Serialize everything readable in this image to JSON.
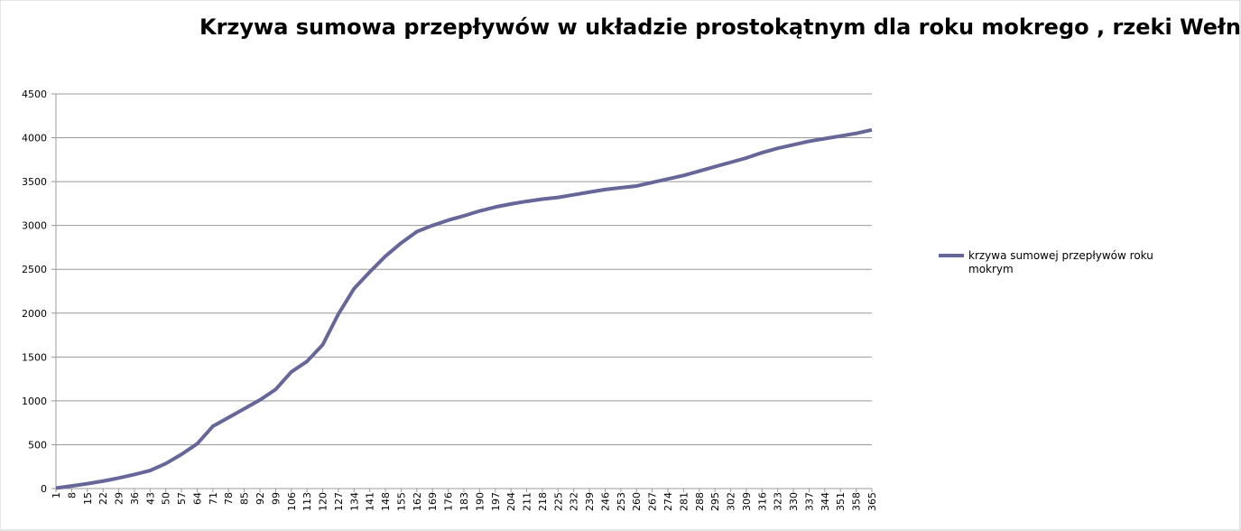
{
  "chart_data": {
    "type": "line",
    "title": "Krzywa sumowa przepływów w układzie prostokątnym dla roku mokrego , rzeki Wełny",
    "x": [
      1,
      8,
      15,
      22,
      29,
      36,
      43,
      50,
      57,
      64,
      71,
      78,
      85,
      92,
      99,
      106,
      113,
      120,
      127,
      134,
      141,
      148,
      155,
      162,
      169,
      176,
      183,
      190,
      197,
      204,
      211,
      218,
      225,
      232,
      239,
      246,
      253,
      260,
      267,
      274,
      281,
      288,
      295,
      302,
      309,
      316,
      323,
      330,
      337,
      344,
      351,
      358,
      365
    ],
    "series": [
      {
        "name": "krzywa sumowej przepływów roku mokrym",
        "color": "#666699",
        "values": [
          5,
          30,
          55,
          85,
          120,
          160,
          205,
          285,
          390,
          510,
          710,
          810,
          910,
          1010,
          1130,
          1330,
          1450,
          1640,
          1990,
          2280,
          2470,
          2650,
          2800,
          2930,
          3000,
          3060,
          3110,
          3165,
          3210,
          3245,
          3275,
          3300,
          3320,
          3350,
          3380,
          3410,
          3430,
          3450,
          3490,
          3530,
          3570,
          3620,
          3670,
          3720,
          3770,
          3830,
          3880,
          3920,
          3960,
          3990,
          4020,
          4050,
          4090
        ]
      }
    ],
    "xlim": [
      1,
      365
    ],
    "xticks": [
      1,
      8,
      15,
      22,
      29,
      36,
      43,
      50,
      57,
      64,
      71,
      78,
      85,
      92,
      99,
      106,
      113,
      120,
      127,
      134,
      141,
      148,
      155,
      162,
      169,
      176,
      183,
      190,
      197,
      204,
      211,
      218,
      225,
      232,
      239,
      246,
      253,
      260,
      267,
      274,
      281,
      288,
      295,
      302,
      309,
      316,
      323,
      330,
      337,
      344,
      351,
      358,
      365
    ],
    "ylim": [
      0,
      4500
    ],
    "yticks": [
      0,
      500,
      1000,
      1500,
      2000,
      2500,
      3000,
      3500,
      4000,
      4500
    ],
    "grid": true,
    "legend": "right"
  }
}
